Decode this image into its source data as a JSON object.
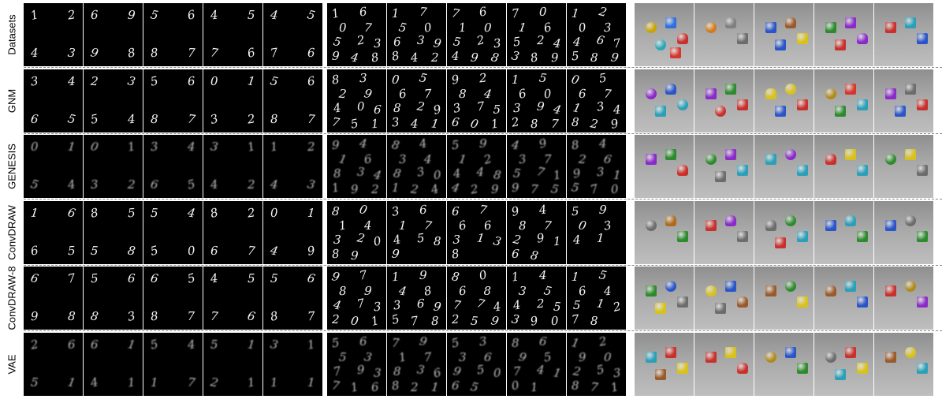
{
  "rows": [
    {
      "label": "Datasets",
      "blurry": false,
      "groups": [
        [
          [
            "1",
            "2",
            "4",
            "3"
          ],
          [
            "6",
            "9",
            "9",
            "8"
          ],
          [
            "5",
            "6",
            "8",
            "7"
          ],
          [
            "4",
            "5",
            "7",
            "6"
          ],
          [
            "4",
            "5",
            "7",
            "6"
          ]
        ],
        [
          [
            "1",
            "6",
            "0",
            "7",
            "5",
            "2",
            "3",
            "9",
            "4",
            "8"
          ],
          [
            "1",
            "7",
            "5",
            "0",
            "6",
            "3",
            "9",
            "8",
            "4",
            "2"
          ],
          [
            "7",
            "6",
            "1",
            "0",
            "5",
            "2",
            "3",
            "4",
            "9",
            "8"
          ],
          [
            "7",
            "0",
            "1",
            "6",
            "5",
            "2",
            "4",
            "3",
            "8",
            "9"
          ],
          [
            "1",
            "2",
            "0",
            "3",
            "4",
            "6",
            "7",
            "5",
            "8",
            "9"
          ]
        ],
        [
          [
            "sphere:#c9a400",
            "cube:#2f6fe0",
            "cyl:#c8302c",
            "sphere:#2aa6b8",
            "cube:#d8352c"
          ],
          [
            "sphere:#d37a1a",
            "cyl:#7f7f7f",
            "cube:#6c6c6c"
          ],
          [
            "cube:#2a55c8",
            "cyl:#9a5a2a",
            "cube:#d8c21a",
            "cube:#2a55c8"
          ],
          [
            "cube:#2d8a2d",
            "cube:#8a2ac8",
            "cyl:#8a2ac8",
            "cube:#c8302c"
          ],
          [
            "cube:#c8302c",
            "cube:#2a9fb8",
            "cube:#2a55c8"
          ]
        ]
      ]
    },
    {
      "label": "GNM",
      "blurry": false,
      "groups": [
        [
          [
            "3",
            "4",
            "6",
            "5"
          ],
          [
            "2",
            "3",
            "5",
            "4"
          ],
          [
            "5",
            "6",
            "8",
            "7"
          ],
          [
            "0",
            "1",
            "3",
            "2"
          ],
          [
            "5",
            "6",
            "8",
            "7"
          ]
        ],
        [
          [
            "8",
            "3",
            "2",
            "9",
            "4",
            "0",
            "6",
            "7",
            "5",
            "1"
          ],
          [
            "0",
            "5",
            "6",
            "7",
            "8",
            "2",
            "9",
            "3",
            "4",
            "1"
          ],
          [
            "9",
            "2",
            "8",
            "4",
            "3",
            "7",
            "5",
            "6",
            "0",
            "1"
          ],
          [
            "1",
            "5",
            "6",
            "0",
            "3",
            "9",
            "4",
            "2",
            "8",
            "7"
          ],
          [
            "0",
            "5",
            "6",
            "7",
            "1",
            "3",
            "4",
            "8",
            "2",
            "9"
          ]
        ],
        [
          [
            "sphere:#8a2ac8",
            "cyl:#2a55c8",
            "sphere:#2a9fb8",
            "cube:#2a9fb8"
          ],
          [
            "cube:#8a2ac8",
            "cube:#2d8a2d",
            "cube:#c8302c",
            "sphere:#c8302c"
          ],
          [
            "cyl:#d8c21a",
            "sphere:#d8c21a",
            "cube:#c8302c",
            "cube:#2a55c8"
          ],
          [
            "sphere:#b08a1a",
            "cube:#d8352c",
            "cube:#2a9fb8",
            "cube:#2d8a2d"
          ],
          [
            "cube:#8a2ac8",
            "cube:#6c6c6c",
            "cube:#c8302c",
            "cube:#2a55c8"
          ]
        ]
      ]
    },
    {
      "label": "GENESIS",
      "blurry": true,
      "groups": [
        [
          [
            "0",
            "1",
            "5",
            "4"
          ],
          [
            "0",
            "1",
            "3",
            "2"
          ],
          [
            "3",
            "4",
            "6",
            "5"
          ],
          [
            "3",
            "1",
            "4",
            "2"
          ],
          [
            "1",
            "2",
            "4",
            "3"
          ]
        ],
        [
          [
            "9",
            "4",
            "1",
            "6",
            "8",
            "3",
            "4",
            "1",
            "9",
            "2"
          ],
          [
            "8",
            "4",
            "3",
            "4",
            "8",
            "3",
            "0",
            "1",
            "2",
            "4"
          ],
          [
            "5",
            "9",
            "1",
            "2",
            "4",
            "4",
            "8",
            "4",
            "2",
            "9"
          ],
          [
            "4",
            "9",
            "3",
            "7",
            "5",
            "7",
            "1",
            "9",
            "7",
            "5"
          ],
          [
            "8",
            "4",
            "2",
            "6",
            "9",
            "3",
            "1",
            "5",
            "7",
            "0"
          ]
        ],
        [
          [
            "cube:#8a2ac8",
            "cube:#2d8a2d",
            "cyl:#c8302c"
          ],
          [
            "sphere:#2d8a2d",
            "cube:#8a2ac8",
            "cube:#2a9fb8",
            "cube:#6c6c6c"
          ],
          [
            "cube:#2a9fb8",
            "sphere:#8a2ac8",
            "cube:#2a9fb8"
          ],
          [
            "cyl:#c8302c",
            "cube:#d8c21a",
            "cube:#2a9fb8"
          ],
          [
            "sphere:#2d8a2d",
            "cube:#d8c21a",
            "cube:#6c6c6c"
          ]
        ]
      ]
    },
    {
      "label": "ConvDRAW",
      "blurry": false,
      "groups": [
        [
          [
            "1",
            "6",
            "6",
            "5"
          ],
          [
            "8",
            "5",
            "5",
            "8"
          ],
          [
            "5",
            "4",
            "5",
            "0"
          ],
          [
            "8",
            "2",
            "6",
            "7"
          ],
          [
            "0",
            "1",
            "4",
            "9"
          ]
        ],
        [
          [
            "8",
            "0",
            "1",
            "4",
            "3",
            "2",
            "0",
            "8",
            "9"
          ],
          [
            "3",
            "6",
            "1",
            "7",
            "4",
            "5",
            "8",
            "9"
          ],
          [
            "6",
            "7",
            "6",
            "6",
            "3",
            "1",
            "3",
            "8"
          ],
          [
            "9",
            "4",
            "8",
            "7",
            "2",
            "9",
            "1",
            "6",
            "8"
          ],
          [
            "5",
            "9",
            "0",
            "3",
            "4",
            "1"
          ]
        ],
        [
          [
            "sphere:#6c6c6c",
            "cyl:#b06a1a",
            "cube:#2d8a2d"
          ],
          [
            "cube:#c8302c",
            "cyl:#8a2ac8",
            "cube:#6c6c6c"
          ],
          [
            "cyl:#6c6c6c",
            "sphere:#2d8a2d",
            "cube:#2a9fb8",
            "cube:#c8302c"
          ],
          [
            "cube:#2a55c8",
            "cyl:#2a9fb8",
            "cube:#2d8a2d"
          ],
          [
            "cube:#2a55c8",
            "sphere:#6c6c6c",
            "cube:#2d8a2d"
          ]
        ]
      ]
    },
    {
      "label": "ConvDRAW-8",
      "blurry": false,
      "groups": [
        [
          [
            "6",
            "7",
            "9",
            "8"
          ],
          [
            "5",
            "6",
            "8",
            "3"
          ],
          [
            "6",
            "5",
            "8",
            "7"
          ],
          [
            "4",
            "5",
            "7",
            "6"
          ],
          [
            "5",
            "6",
            "8",
            "7"
          ]
        ],
        [
          [
            "9",
            "7",
            "8",
            "9",
            "4",
            "7",
            "3",
            "2",
            "0",
            "1"
          ],
          [
            "1",
            "9",
            "4",
            "8",
            "3",
            "6",
            "9",
            "5",
            "7",
            "8"
          ],
          [
            "8",
            "0",
            "6",
            "8",
            "7",
            "7",
            "4",
            "2",
            "5",
            "9"
          ],
          [
            "1",
            "4",
            "3",
            "5",
            "4",
            "2",
            "5",
            "3",
            "9",
            "0"
          ],
          [
            "1",
            "5",
            "6",
            "4",
            "5",
            "1",
            "2",
            "7",
            "8"
          ]
        ],
        [
          [
            "cube:#2d8a2d",
            "sphere:#2a55c8",
            "cube:#6c6c6c",
            "cube:#d8c21a"
          ],
          [
            "sphere:#d8c21a",
            "cube:#2a55c8",
            "cyl:#9a5a2a",
            "cube:#6c6c6c"
          ],
          [
            "cube:#9a5a2a",
            "sphere:#2d8a2d",
            "cube:#d8c21a"
          ],
          [
            "cyl:#9a5a2a",
            "cube:#2a9fb8",
            "cube:#2a55c8"
          ],
          [
            "cube:#c8302c",
            "sphere:#b08a1a",
            "cube:#8a2ac8"
          ]
        ]
      ]
    },
    {
      "label": "VAE",
      "blurry": true,
      "groups": [
        [
          [
            "2",
            "6",
            "5",
            "1"
          ],
          [
            "6",
            "1",
            "4",
            "1"
          ],
          [
            "5",
            "4",
            "1",
            "7"
          ],
          [
            "5",
            "1",
            "2",
            "1"
          ],
          [
            "3",
            "1",
            "1",
            "1"
          ]
        ],
        [
          [
            "5",
            "6",
            "5",
            "3",
            "7",
            "9",
            "3",
            "7",
            "1",
            "6"
          ],
          [
            "7",
            "9",
            "1",
            "7",
            "8",
            "3",
            "6",
            "8",
            "2",
            "1"
          ],
          [
            "5",
            "3",
            "3",
            "6",
            "9",
            "5",
            "0",
            "6",
            "5"
          ],
          [
            "8",
            "6",
            "9",
            "5",
            "7",
            "4",
            "1",
            "0",
            "1"
          ],
          [
            "1",
            "2",
            "9",
            "0",
            "2",
            "5",
            "3",
            "8",
            "7",
            "1"
          ]
        ],
        [
          [
            "cube:#2a9fb8",
            "cube:#c8302c",
            "cube:#d8c21a",
            "cube:#9a5a2a"
          ],
          [
            "cube:#c8302c",
            "cube:#d8c21a",
            "cyl:#c8302c"
          ],
          [
            "sphere:#b08a1a",
            "cube:#2a55c8",
            "cube:#2d8a2d"
          ],
          [
            "sphere:#6c6c6c",
            "cube:#c8302c",
            "cube:#d8c21a",
            "cube:#2a9fb8"
          ],
          [
            "cube:#9a5a2a",
            "sphere:#d8c21a",
            "cube:#2a9fb8"
          ]
        ]
      ]
    }
  ]
}
